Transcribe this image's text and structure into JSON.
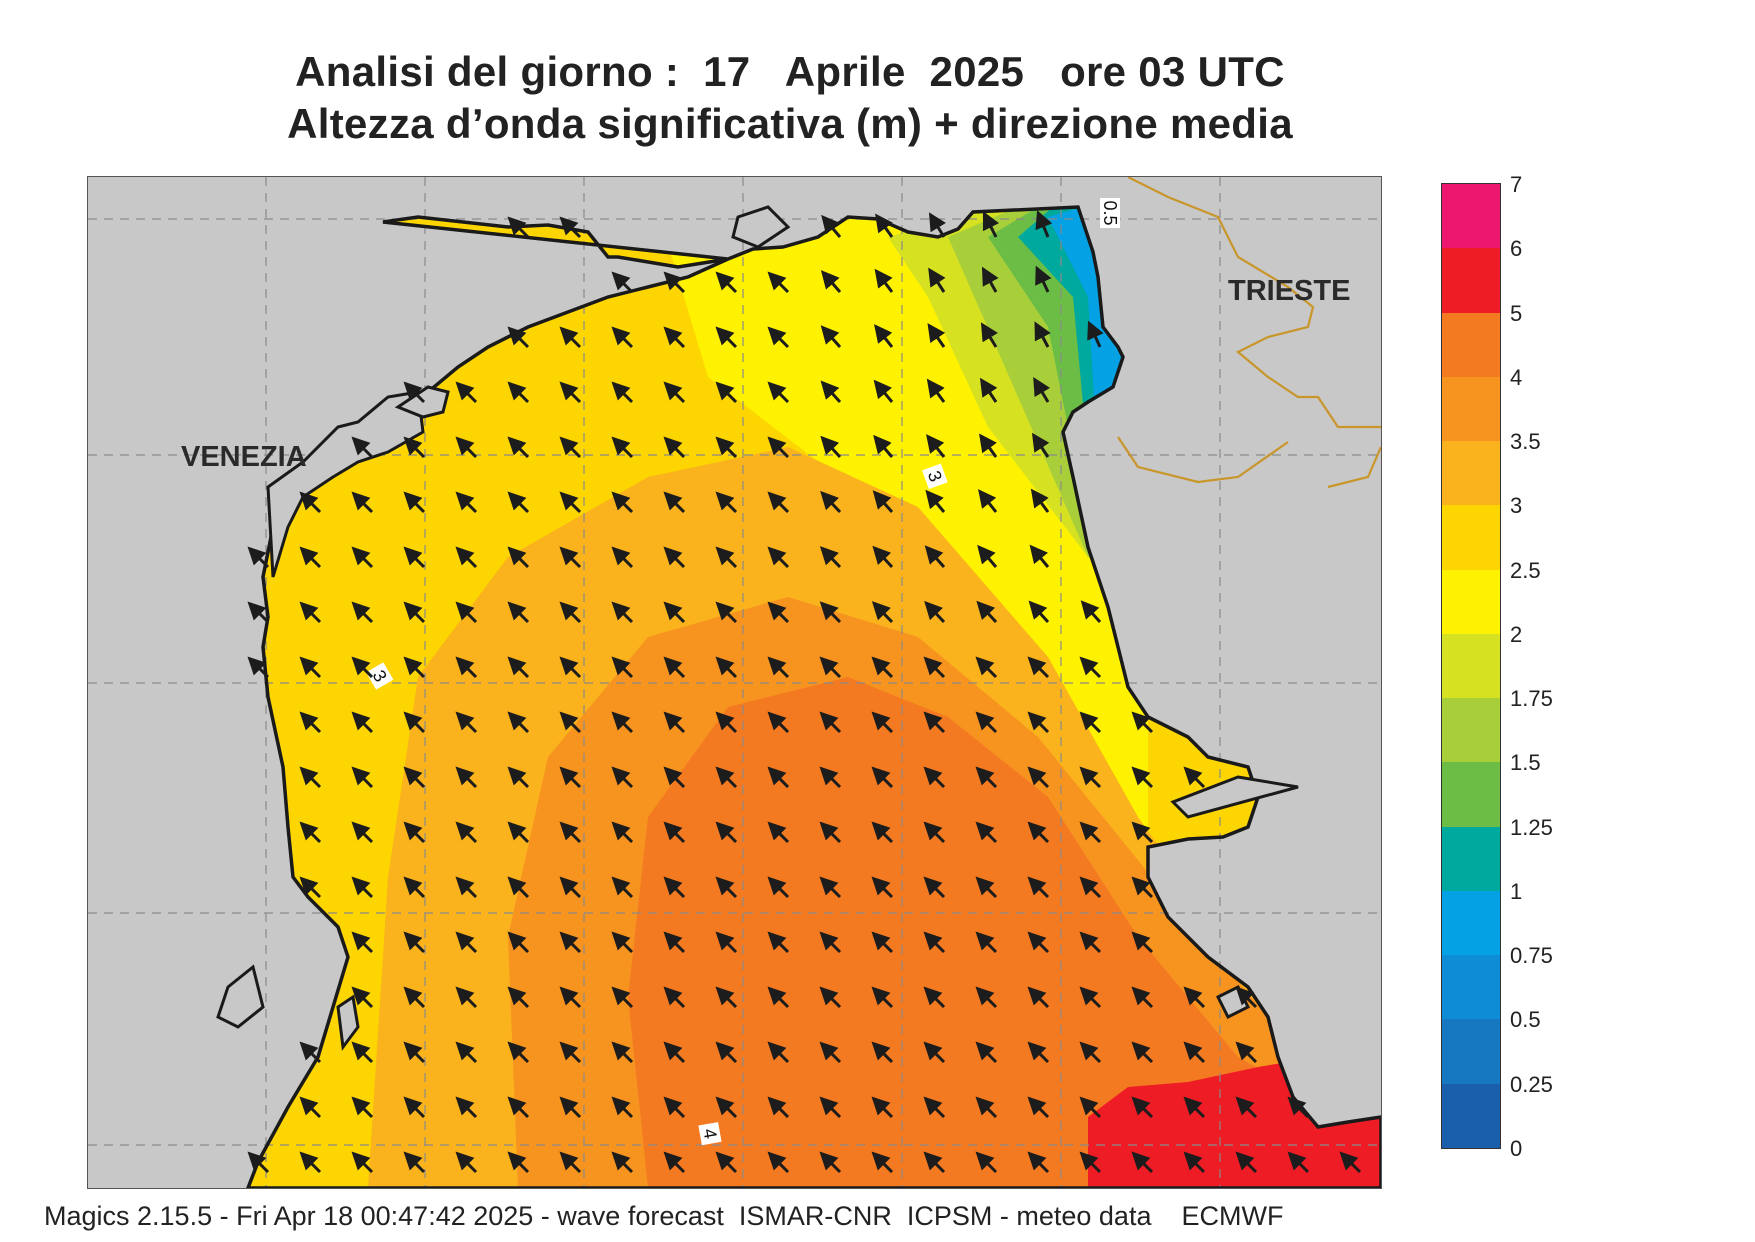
{
  "header": {
    "title_line1": "Analisi del giorno :  17   Aprile  2025   ore 03 UTC",
    "title_line2": "Altezza d’onda significativa (m) + direzione media"
  },
  "map": {
    "cities": [
      {
        "id": "venezia",
        "label": "VENEZIA"
      },
      {
        "id": "trieste",
        "label": "TRIESTE"
      }
    ],
    "contour_labels": [
      "0.5",
      "3",
      "3",
      "4"
    ],
    "arrow_direction": "north-west",
    "colors": {
      "land": "#c8c8c8",
      "coast": "#1a1a1a",
      "border": "#c8962a",
      "arrow": "#1c1c1c"
    }
  },
  "legend": {
    "levels": [
      {
        "label": "7",
        "color": "#ee1770"
      },
      {
        "label": "6",
        "color": "#ee1c24"
      },
      {
        "label": "5",
        "color": "#f47a22"
      },
      {
        "label": "4",
        "color": "#f79420"
      },
      {
        "label": "3.5",
        "color": "#fab31c"
      },
      {
        "label": "3",
        "color": "#fdd602"
      },
      {
        "label": "2.5",
        "color": "#fef200"
      },
      {
        "label": "2",
        "color": "#d6e221"
      },
      {
        "label": "1.75",
        "color": "#a8cf3a"
      },
      {
        "label": "1.5",
        "color": "#6cbd45"
      },
      {
        "label": "1.25",
        "color": "#00a99d"
      },
      {
        "label": "1",
        "color": "#04a1e4"
      },
      {
        "label": "0.75",
        "color": "#0f8cd6"
      },
      {
        "label": "0.5",
        "color": "#1778c2"
      },
      {
        "label": "0.25",
        "color": "#1a5fab"
      },
      {
        "label": "0",
        "color": ""
      }
    ]
  },
  "footer": {
    "text": "Magics 2.15.5 - Fri Apr 18 00:47:42 2025 - wave forecast  ISMAR-CNR  ICPSM - meteo data    ECMWF"
  }
}
